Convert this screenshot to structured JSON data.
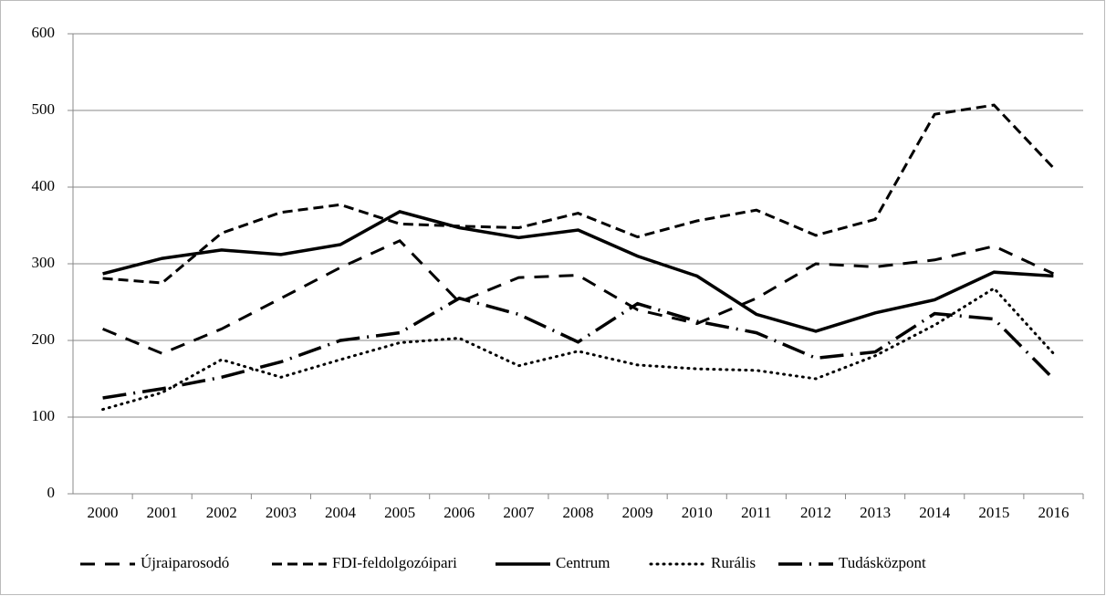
{
  "chart_data": {
    "type": "line",
    "categories": [
      "2000",
      "2001",
      "2002",
      "2003",
      "2004",
      "2005",
      "2006",
      "2007",
      "2008",
      "2009",
      "2010",
      "2011",
      "2012",
      "2013",
      "2014",
      "2015",
      "2016"
    ],
    "ylim": [
      0,
      600
    ],
    "yticks": [
      0,
      100,
      200,
      300,
      400,
      500,
      600
    ],
    "grid": true,
    "legend": "bottom",
    "series": [
      {
        "name": "Újraiparosodó",
        "color": "#000000",
        "dash": "16,11",
        "width": 3,
        "values": [
          215,
          183,
          215,
          255,
          295,
          330,
          250,
          282,
          285,
          240,
          222,
          255,
          300,
          296,
          305,
          323,
          287
        ]
      },
      {
        "name": "FDI-feldolgozóipari",
        "color": "#000000",
        "dash": "11,6",
        "width": 3,
        "values": [
          281,
          275,
          340,
          367,
          377,
          352,
          349,
          347,
          366,
          335,
          356,
          370,
          337,
          358,
          495,
          507,
          425
        ]
      },
      {
        "name": "Centrum",
        "color": "#000000",
        "dash": "none",
        "width": 3.5,
        "values": [
          287,
          307,
          318,
          312,
          325,
          368,
          347,
          334,
          344,
          310,
          284,
          234,
          212,
          236,
          253,
          289,
          284
        ]
      },
      {
        "name": "Rurális",
        "color": "#000000",
        "dash": "1,6",
        "width": 3,
        "values": [
          110,
          132,
          175,
          152,
          175,
          197,
          203,
          167,
          186,
          168,
          163,
          161,
          150,
          180,
          220,
          268,
          183
        ]
      },
      {
        "name": "Tudásközpont",
        "color": "#000000",
        "dash": "26,8,2,8",
        "width": 3.5,
        "values": [
          125,
          137,
          152,
          172,
          200,
          210,
          255,
          234,
          198,
          248,
          225,
          210,
          177,
          185,
          235,
          228,
          150
        ]
      }
    ]
  }
}
